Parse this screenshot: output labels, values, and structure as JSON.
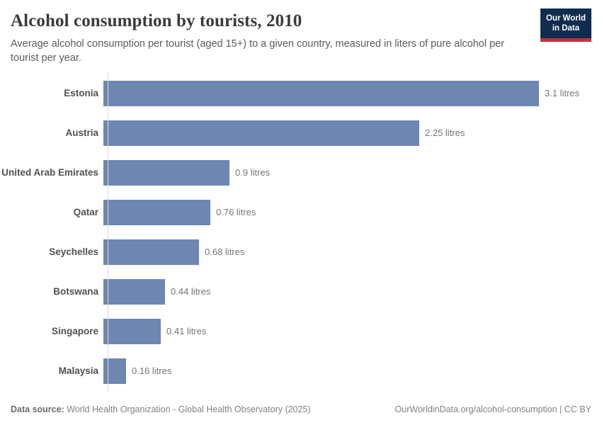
{
  "header": {
    "title": "Alcohol consumption by tourists, 2010",
    "subtitle": "Average alcohol consumption per tourist (aged 15+) to a given country, measured in liters of pure alcohol per tourist per year.",
    "logo": {
      "line1": "Our World",
      "line2": "in Data",
      "bg_color": "#102d4f",
      "accent_color": "#c5303c"
    }
  },
  "chart_data": {
    "type": "bar",
    "orientation": "horizontal",
    "title": "Alcohol consumption by tourists, 2010",
    "categories": [
      "Estonia",
      "Austria",
      "United Arab Emirates",
      "Qatar",
      "Seychelles",
      "Botswana",
      "Singapore",
      "Malaysia"
    ],
    "values": [
      3.1,
      2.25,
      0.9,
      0.76,
      0.68,
      0.44,
      0.41,
      0.16
    ],
    "value_labels": [
      "3.1 litres",
      "2.25 litres",
      "0.9 litres",
      "0.76 litres",
      "0.68 litres",
      "0.44 litres",
      "0.41 litres",
      "0.16 litres"
    ],
    "unit": "litres",
    "xlim": [
      0,
      3.44
    ],
    "bar_color": "#6e87b0",
    "axis_color": "#dadada",
    "grid": false,
    "legend": false
  },
  "footer": {
    "datasource_label": "Data source:",
    "datasource_value": " World Health Organization - Global Health Observatory (2025)",
    "attribution": "OurWorldinData.org/alcohol-consumption | CC BY"
  }
}
